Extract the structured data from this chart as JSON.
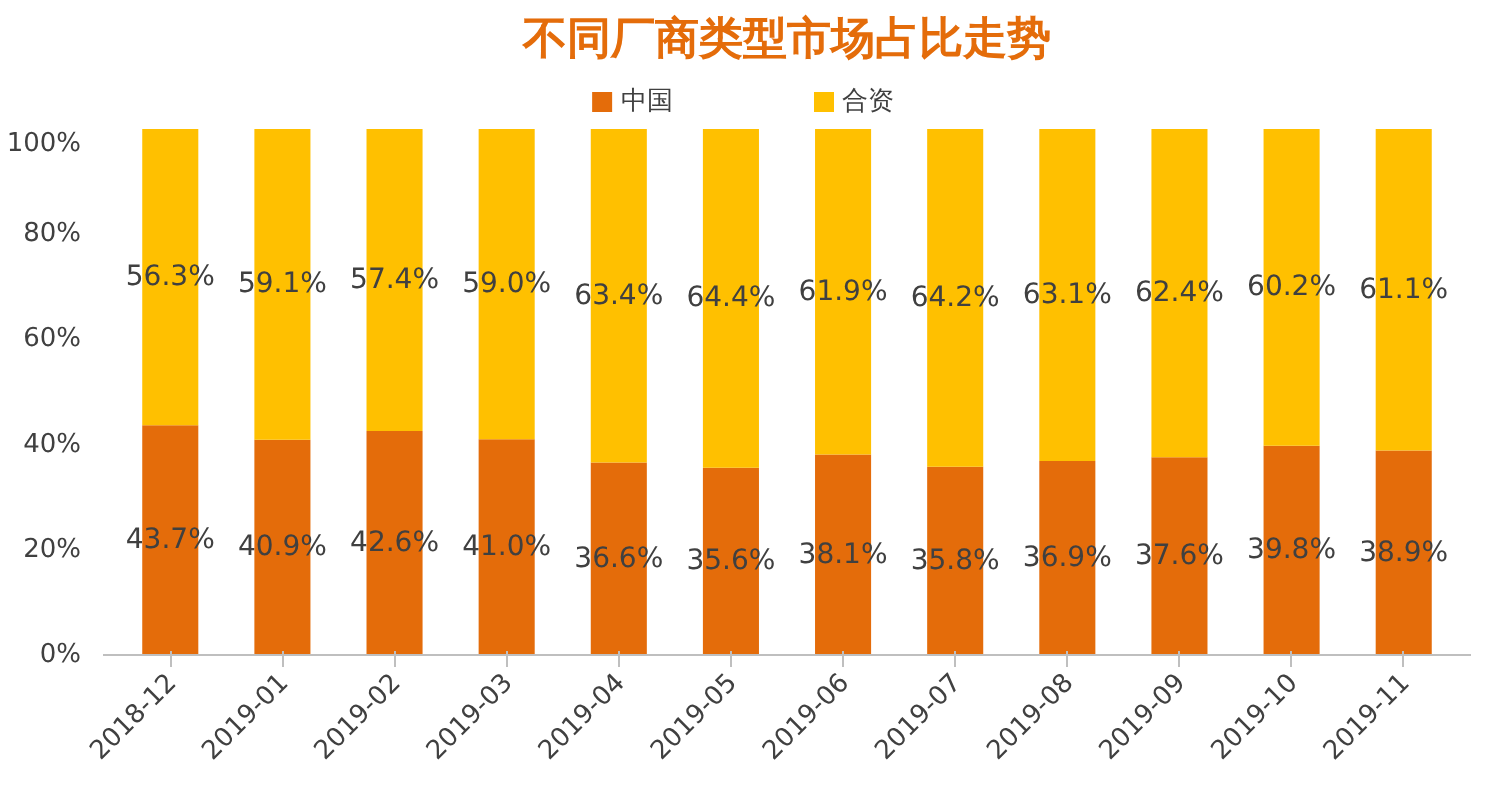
{
  "chart_data": {
    "type": "bar",
    "title": "不同厂商类型市场占比走势",
    "stacked": true,
    "legend": "top",
    "grid": false,
    "categories": [
      "2018-12",
      "2019-01",
      "2019-02",
      "2019-03",
      "2019-04",
      "2019-05",
      "2019-06",
      "2019-07",
      "2019-08",
      "2019-09",
      "2019-10",
      "2019-11"
    ],
    "series": [
      {
        "name": "中国",
        "color": "#e46c0a",
        "values": [
          43.7,
          40.9,
          42.6,
          41.0,
          36.6,
          35.6,
          38.1,
          35.8,
          36.9,
          37.6,
          39.8,
          38.9
        ],
        "value_labels": [
          "43.7%",
          "40.9%",
          "42.6%",
          "41.0%",
          "36.6%",
          "35.6%",
          "38.1%",
          "35.8%",
          "36.9%",
          "37.6%",
          "39.8%",
          "38.9%"
        ]
      },
      {
        "name": "合资",
        "color": "#ffc000",
        "values": [
          56.3,
          59.1,
          57.4,
          59.0,
          63.4,
          64.4,
          61.9,
          64.2,
          63.1,
          62.4,
          60.2,
          61.1
        ],
        "value_labels": [
          "56.3%",
          "59.1%",
          "57.4%",
          "59.0%",
          "63.4%",
          "64.4%",
          "61.9%",
          "64.2%",
          "63.1%",
          "62.4%",
          "60.2%",
          "61.1%"
        ]
      }
    ],
    "ylim": [
      0,
      100
    ],
    "yticks": [
      {
        "value": 0,
        "label": "0%"
      },
      {
        "value": 20,
        "label": "20%"
      },
      {
        "value": 40,
        "label": "40%"
      },
      {
        "value": 60,
        "label": "60%"
      },
      {
        "value": 80,
        "label": "80%"
      },
      {
        "value": 100,
        "label": "100%"
      }
    ]
  }
}
